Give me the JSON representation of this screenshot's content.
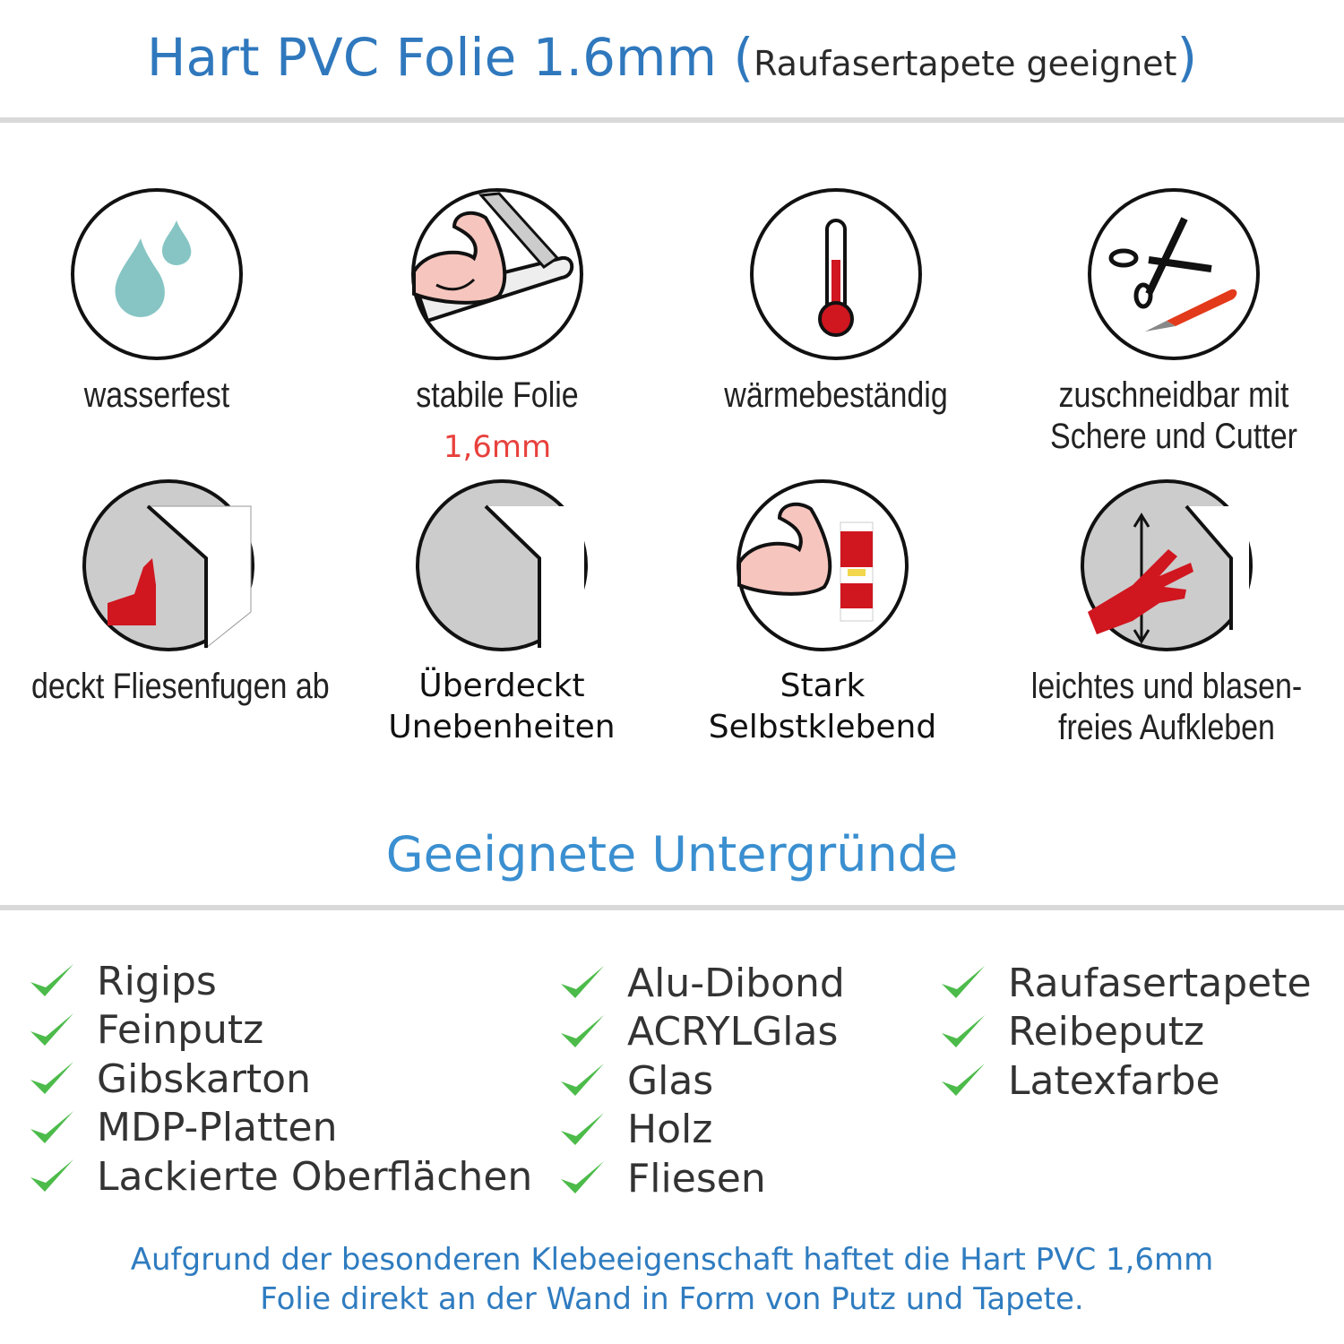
{
  "header": {
    "title": "Hart PVC Folie 1.6mm",
    "paren_open": "(",
    "subtitle": "Raufasertapete geeignet",
    "paren_close": ")"
  },
  "features": [
    {
      "icon": "water-drops-icon",
      "label": "wasserfest"
    },
    {
      "icon": "strong-arm-foil-icon",
      "label": "stabile Folie",
      "note": "1,6mm"
    },
    {
      "icon": "thermometer-icon",
      "label": "wärmebeständig"
    },
    {
      "icon": "scissors-cutter-icon",
      "label": "zuschneidbar mit",
      "label2": "Schere und Cutter"
    },
    {
      "icon": "thumbs-up-tiles-icon",
      "label": "deckt Fliesenfugen ab"
    },
    {
      "icon": "foil-corner-icon",
      "label": "Überdeckt",
      "label2": "Unebenheiten"
    },
    {
      "icon": "strong-arm-glue-icon",
      "label": "Stark",
      "label2": "Selbstklebend"
    },
    {
      "icon": "hand-smoothing-icon",
      "label": "leichtes und blasen-",
      "label2": "freies Aufkleben"
    }
  ],
  "section_title": "Geeignete Untergründe",
  "surfaces": {
    "col1": [
      "Rigips",
      "Feinputz",
      "Gibskarton",
      "MDP-Platten",
      "Lackierte Oberflächen"
    ],
    "col2": [
      "Alu-Dibond",
      "ACRYLGlas",
      "Glas",
      "Holz",
      "Fliesen"
    ],
    "col3": [
      "Raufasertapete",
      "Reibeputz",
      "Latexfarbe"
    ]
  },
  "footer": {
    "line1": "Aufgrund der besonderen Klebeeigenschaft haftet die Hart PVC 1,6mm",
    "line2": "Folie direkt an der Wand in Form von Putz und Tapete."
  },
  "colors": {
    "title_blue": "#2f78bd",
    "accent_blue": "#3a8fd0",
    "check_green": "#4cbb4a",
    "red": "#d0161f",
    "note_red": "#e8413d",
    "drop_teal": "#86c5c4"
  }
}
